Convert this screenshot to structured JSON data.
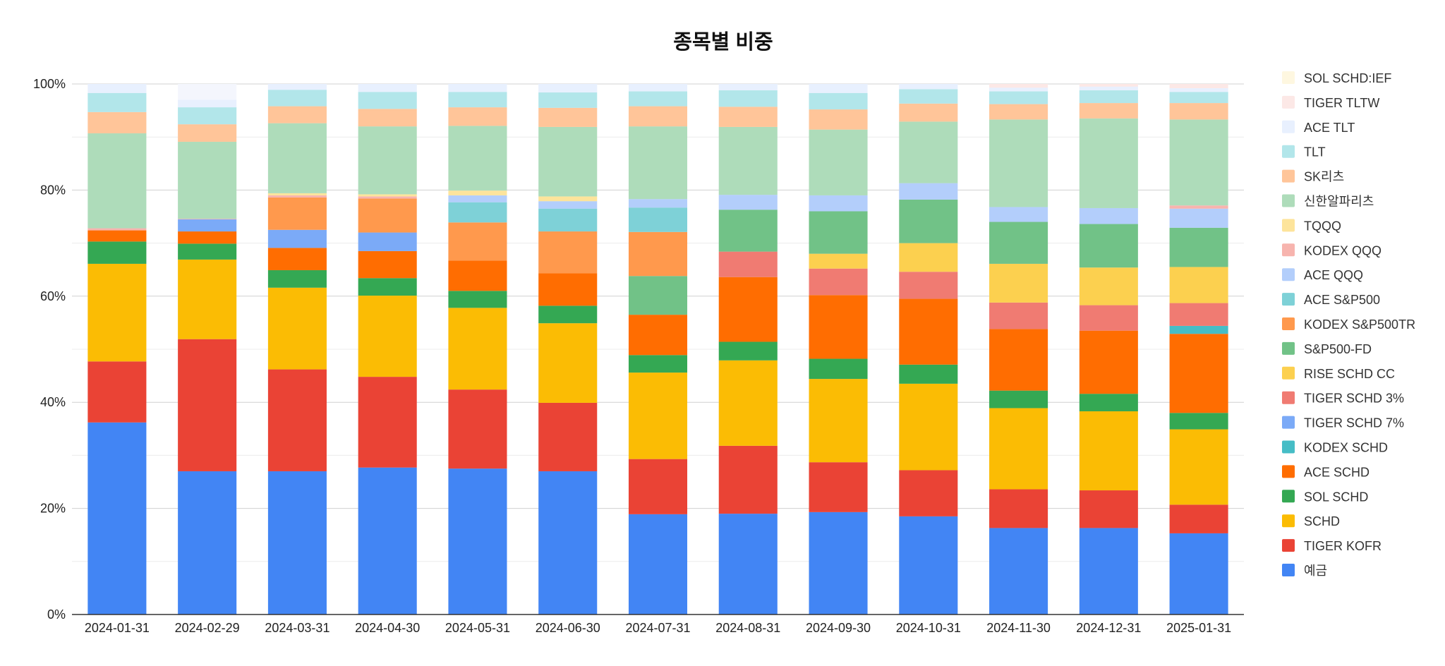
{
  "chart_data": {
    "type": "stacked-bar-100",
    "title": "종목별 비중",
    "xlabel": "",
    "ylabel": "",
    "ylim": [
      0,
      100
    ],
    "y_ticks": [
      "0%",
      "20%",
      "40%",
      "60%",
      "80%",
      "100%"
    ],
    "grid": true,
    "legend_position": "right",
    "categories": [
      "2024-01-31",
      "2024-02-29",
      "2024-03-31",
      "2024-04-30",
      "2024-05-31",
      "2024-06-30",
      "2024-07-31",
      "2024-08-31",
      "2024-09-30",
      "2024-10-31",
      "2024-11-30",
      "2024-12-31",
      "2025-01-31"
    ],
    "series": [
      {
        "name": "예금",
        "color": "#4285f4",
        "values": [
          36.2,
          27.0,
          27.0,
          27.7,
          27.5,
          27.0,
          18.9,
          19.0,
          19.3,
          18.5,
          16.3,
          16.3,
          15.3
        ]
      },
      {
        "name": "TIGER KOFR",
        "color": "#ea4335",
        "values": [
          11.5,
          24.9,
          19.2,
          17.1,
          14.9,
          12.9,
          10.4,
          12.8,
          9.4,
          8.7,
          7.3,
          7.1,
          5.4
        ]
      },
      {
        "name": "SCHD",
        "color": "#fbbc04",
        "values": [
          18.4,
          15.0,
          15.4,
          15.3,
          15.4,
          15.0,
          16.3,
          16.1,
          15.7,
          16.3,
          15.3,
          14.9,
          14.2
        ]
      },
      {
        "name": "SOL SCHD",
        "color": "#34a853",
        "values": [
          4.2,
          3.0,
          3.3,
          3.3,
          3.2,
          3.3,
          3.3,
          3.5,
          3.8,
          3.6,
          3.3,
          3.3,
          3.1
        ]
      },
      {
        "name": "ACE SCHD",
        "color": "#ff6d01",
        "values": [
          2.1,
          2.3,
          4.2,
          5.1,
          5.7,
          6.1,
          7.6,
          12.2,
          12.0,
          12.4,
          11.6,
          11.9,
          14.9
        ]
      },
      {
        "name": "KODEX SCHD",
        "color": "#46bdc6",
        "values": [
          0,
          0,
          0,
          0,
          0,
          0,
          0,
          0,
          0,
          0,
          0,
          0,
          1.5
        ]
      },
      {
        "name": "TIGER SCHD 7%",
        "color": "#7baaf7",
        "values": [
          0,
          2.3,
          3.4,
          3.5,
          0,
          0,
          0,
          0,
          0,
          0,
          0,
          0,
          0
        ]
      },
      {
        "name": "TIGER SCHD 3%",
        "color": "#f07b72",
        "values": [
          0,
          0,
          0,
          0,
          0,
          0,
          0,
          4.8,
          5.0,
          5.1,
          5.0,
          4.8,
          4.3
        ]
      },
      {
        "name": "RISE SCHD CC",
        "color": "#fcd04f",
        "values": [
          0,
          0,
          0,
          0,
          0,
          0,
          0,
          0,
          2.8,
          5.4,
          7.3,
          7.1,
          6.8
        ]
      },
      {
        "name": "S&P500-FD",
        "color": "#71c287",
        "values": [
          0,
          0,
          0,
          0,
          0,
          0,
          7.3,
          7.9,
          8.0,
          8.2,
          7.9,
          8.2,
          7.4
        ]
      },
      {
        "name": "KODEX S&P500TR",
        "color": "#ff994d",
        "values": [
          0,
          0,
          6.1,
          6.4,
          7.2,
          7.9,
          8.3,
          0,
          0,
          0,
          0,
          0,
          0
        ]
      },
      {
        "name": "ACE S&P500",
        "color": "#7ed1d7",
        "values": [
          0,
          0,
          0,
          0,
          3.8,
          4.3,
          4.6,
          0,
          0,
          0,
          0,
          0,
          0
        ]
      },
      {
        "name": "ACE QQQ",
        "color": "#b3cefb",
        "values": [
          0,
          0,
          0,
          0,
          1.3,
          1.4,
          1.6,
          2.8,
          3.0,
          3.1,
          2.8,
          3.0,
          3.6
        ]
      },
      {
        "name": "KODEX QQQ",
        "color": "#f7b4ae",
        "values": [
          0.4,
          0.1,
          0.4,
          0.4,
          0,
          0,
          0,
          0,
          0,
          0,
          0,
          0,
          0.6
        ]
      },
      {
        "name": "TQQQ",
        "color": "#fde49b",
        "values": [
          0,
          0,
          0.4,
          0.4,
          0.9,
          0.9,
          0,
          0,
          0,
          0,
          0,
          0,
          0
        ]
      },
      {
        "name": "신한알파리츠",
        "color": "#aedcba",
        "values": [
          17.9,
          14.5,
          13.2,
          12.8,
          12.2,
          13.1,
          13.7,
          12.8,
          12.4,
          11.6,
          16.5,
          16.9,
          16.2
        ]
      },
      {
        "name": "SK리츠",
        "color": "#ffc599",
        "values": [
          4.0,
          3.3,
          3.2,
          3.3,
          3.5,
          3.6,
          3.8,
          3.8,
          3.8,
          3.4,
          2.9,
          2.9,
          3.1
        ]
      },
      {
        "name": "TLT",
        "color": "#b2e6ea",
        "values": [
          3.6,
          3.2,
          3.1,
          3.2,
          2.9,
          2.9,
          2.8,
          3.1,
          3.1,
          2.7,
          2.4,
          2.4,
          2.1
        ]
      },
      {
        "name": "ACE TLT",
        "color": "#e8f0fe",
        "values": [
          1.7,
          1.4,
          1.1,
          1.5,
          1.5,
          1.6,
          1.4,
          1.2,
          1.7,
          1.0,
          0.7,
          0.7,
          0.7
        ]
      },
      {
        "name": "TIGER TLTW",
        "color": "#fce8e6",
        "values": [
          0,
          0,
          0,
          0,
          0,
          0,
          0,
          0,
          0,
          0,
          0.7,
          0.5,
          0.8
        ]
      },
      {
        "name": "SOL SCHD:IEF",
        "color": "#fef7e0",
        "values": [
          0,
          0,
          0,
          0,
          0,
          0,
          0,
          0,
          0,
          0,
          0,
          0,
          0
        ]
      }
    ]
  }
}
